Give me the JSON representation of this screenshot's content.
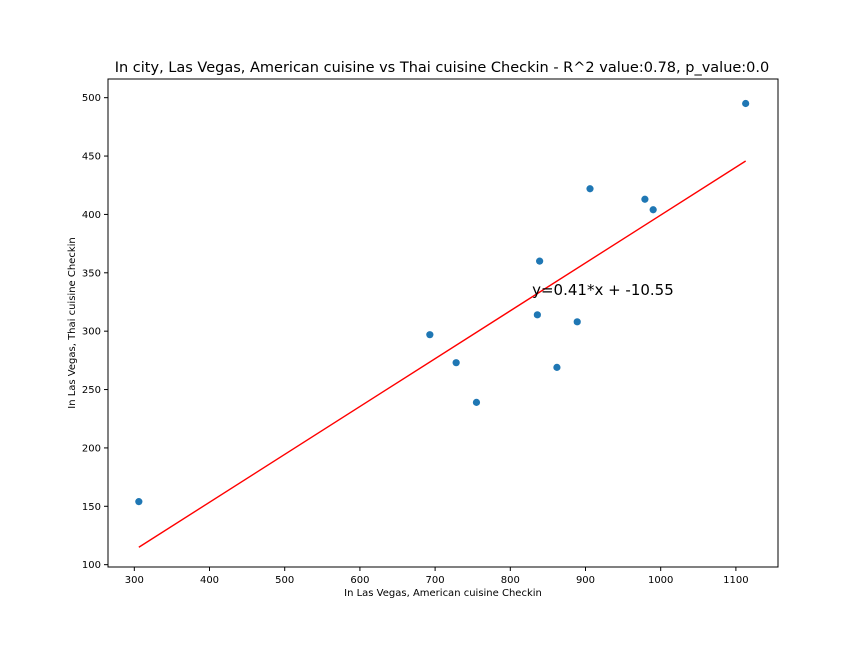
{
  "chart_data": {
    "type": "scatter",
    "title": "In city, Las Vegas, American cuisine vs Thai cuisine Checkin - R^2 value:0.78, p_value:0.0",
    "xlabel": "In Las Vegas, American cuisine Checkin",
    "ylabel": "In Las Vegas, Thai cuisine Checkin",
    "xlim": [
      265,
      1156
    ],
    "ylim": [
      98,
      516
    ],
    "xticks": [
      300,
      400,
      500,
      600,
      700,
      800,
      900,
      1000,
      1100
    ],
    "yticks": [
      100,
      150,
      200,
      250,
      300,
      350,
      400,
      450,
      500
    ],
    "grid": false,
    "series": [
      {
        "points": [
          {
            "x": 306,
            "y": 154
          },
          {
            "x": 693,
            "y": 297
          },
          {
            "x": 728,
            "y": 273
          },
          {
            "x": 755,
            "y": 239
          },
          {
            "x": 836,
            "y": 314
          },
          {
            "x": 839,
            "y": 360
          },
          {
            "x": 862,
            "y": 269
          },
          {
            "x": 889,
            "y": 308
          },
          {
            "x": 906,
            "y": 422
          },
          {
            "x": 979,
            "y": 413
          },
          {
            "x": 990,
            "y": 404
          },
          {
            "x": 1113,
            "y": 495
          }
        ],
        "color": "#1f77b4"
      }
    ],
    "fit_line": {
      "slope": 0.41,
      "intercept": -10.55,
      "x_range": [
        306,
        1113
      ],
      "color": "#ff0000",
      "equation_label": "y=0.41*x + -10.55",
      "label_anchor": {
        "x": 829,
        "y": 331
      }
    }
  }
}
